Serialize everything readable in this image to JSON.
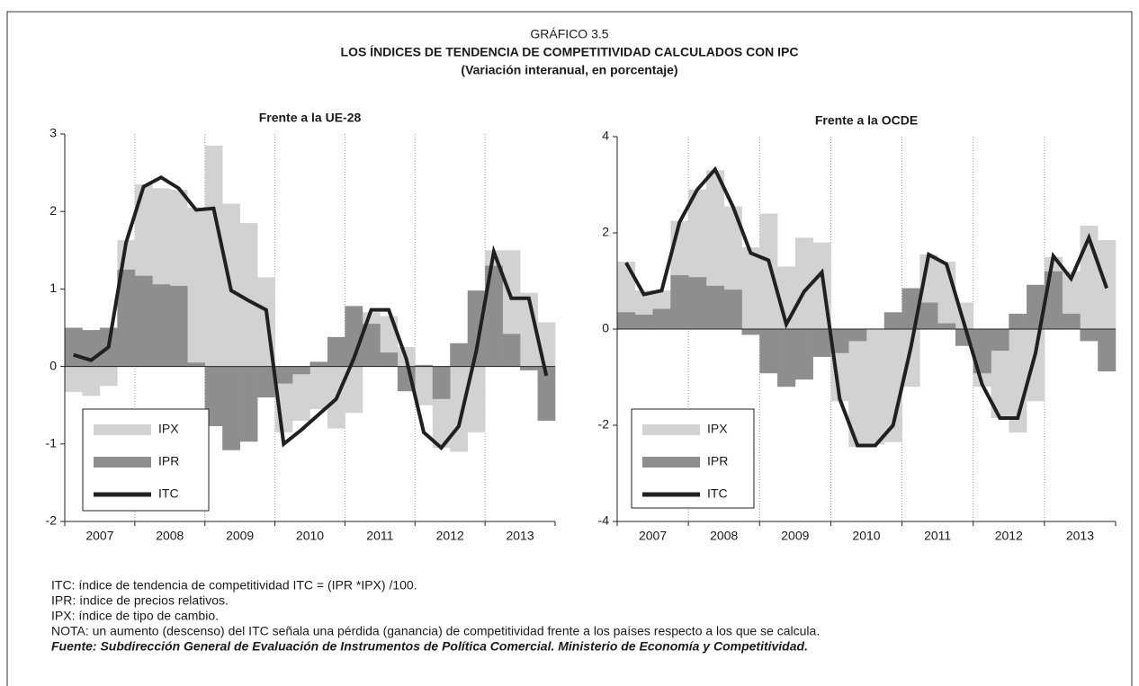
{
  "header": {
    "label": "GRÁFICO 3.5",
    "title": "LOS ÍNDICES DE TENDENCIA DE COMPETITIVIDAD CALCULADOS CON IPC",
    "subtitle": "(Variación interanual, en porcentaje)"
  },
  "chart_data": [
    {
      "type": "combo",
      "title": "Frente a la UE-28",
      "categories": [
        null,
        "2007",
        null,
        null,
        null,
        "2008",
        null,
        null,
        null,
        "2009",
        null,
        null,
        null,
        "2010",
        null,
        null,
        null,
        "2011",
        null,
        null,
        null,
        "2012",
        null,
        null,
        null,
        "2013",
        null,
        null
      ],
      "ylim": [
        -2,
        3
      ],
      "yticks": [
        -2,
        -1,
        0,
        1,
        2,
        3
      ],
      "grid": false,
      "series": [
        {
          "name": "IPX",
          "kind": "bar",
          "color": "#d2d2d2",
          "values": [
            -0.33,
            -0.38,
            -0.25,
            1.63,
            2.35,
            2.3,
            2.28,
            2.05,
            2.85,
            2.1,
            1.85,
            1.15,
            -0.85,
            -0.7,
            -0.55,
            -0.8,
            -0.6,
            0.7,
            0.65,
            0.25,
            -0.5,
            -1.05,
            -1.1,
            -0.85,
            1.5,
            1.5,
            0.95,
            0.57
          ]
        },
        {
          "name": "IPR",
          "kind": "bar",
          "color": "#8e8e8e",
          "values": [
            0.5,
            0.47,
            0.5,
            1.25,
            1.17,
            1.06,
            1.04,
            0.05,
            -0.77,
            -1.08,
            -0.97,
            -0.4,
            -0.22,
            -0.1,
            0.06,
            0.38,
            0.78,
            0.55,
            0.18,
            -0.32,
            0.02,
            -0.42,
            0.3,
            0.98,
            1.3,
            0.42,
            -0.05,
            -0.7
          ]
        },
        {
          "name": "ITC",
          "kind": "line",
          "color": "#231f20",
          "values": [
            0.15,
            0.08,
            0.25,
            1.6,
            2.32,
            2.44,
            2.3,
            2.02,
            2.04,
            0.98,
            0.85,
            0.73,
            -1.0,
            -0.82,
            -0.62,
            -0.42,
            0.1,
            0.73,
            0.73,
            0.1,
            -0.85,
            -1.05,
            -0.77,
            0.2,
            1.48,
            0.88,
            0.88,
            -0.12
          ]
        }
      ]
    },
    {
      "type": "combo",
      "title": "Frente a la OCDE",
      "categories": [
        null,
        "2007",
        null,
        null,
        null,
        "2008",
        null,
        null,
        null,
        "2009",
        null,
        null,
        null,
        "2010",
        null,
        null,
        null,
        "2011",
        null,
        null,
        null,
        "2012",
        null,
        null,
        null,
        "2013",
        null,
        null
      ],
      "ylim": [
        -4,
        4
      ],
      "yticks": [
        -4,
        -2,
        0,
        2,
        4
      ],
      "grid": false,
      "series": [
        {
          "name": "IPX",
          "kind": "bar",
          "color": "#d2d2d2",
          "values": [
            1.4,
            0.8,
            0.8,
            2.25,
            2.9,
            3.3,
            2.55,
            1.7,
            2.4,
            1.3,
            1.9,
            1.8,
            -1.5,
            -2.45,
            -2.4,
            -2.35,
            -1.2,
            1.55,
            1.4,
            0.55,
            -1.2,
            -1.85,
            -2.15,
            -1.5,
            1.5,
            1.2,
            2.15,
            1.85
          ]
        },
        {
          "name": "IPR",
          "kind": "bar",
          "color": "#8e8e8e",
          "values": [
            0.35,
            0.3,
            0.42,
            1.12,
            1.08,
            0.9,
            0.82,
            -0.12,
            -0.92,
            -1.2,
            -1.05,
            -0.58,
            -0.5,
            -0.25,
            0,
            0.35,
            0.85,
            0.55,
            0.12,
            -0.35,
            -0.92,
            -0.45,
            0.32,
            0.92,
            1.2,
            0.32,
            -0.25,
            -0.88
          ]
        },
        {
          "name": "ITC",
          "kind": "line",
          "color": "#231f20",
          "values": [
            1.38,
            0.72,
            0.8,
            2.22,
            2.9,
            3.32,
            2.55,
            1.58,
            1.43,
            0.1,
            0.78,
            1.18,
            -1.45,
            -2.42,
            -2.42,
            -2.0,
            -0.38,
            1.55,
            1.35,
            0.1,
            -1.15,
            -1.85,
            -1.85,
            -0.5,
            1.52,
            1.05,
            1.9,
            0.85
          ]
        }
      ]
    }
  ],
  "notes": [
    "ITC: índice de tendencia de competitividad  ITC = (IPR *IPX) /100.",
    "IPR: índice de precios relativos.",
    "IPX: índice de tipo de cambio.",
    "NOTA: un aumento (descenso) del ITC señala una pérdida (ganancia) de competitividad frente a los países respecto a los que se calcula."
  ],
  "source": "Fuente: Subdirección General de Evaluación de Instrumentos de Política Comercial. Ministerio de Economía y Competitividad."
}
